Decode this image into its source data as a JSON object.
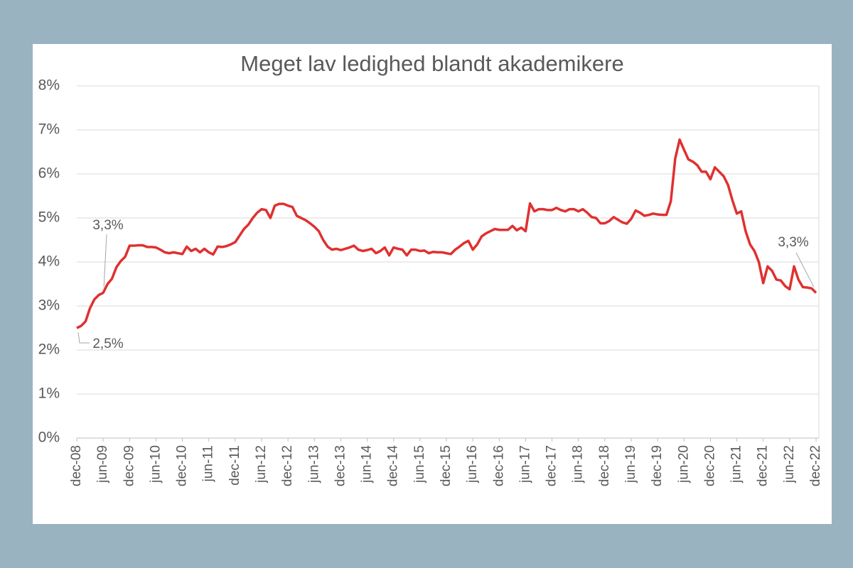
{
  "chart_data": {
    "type": "line",
    "title": "Meget lav ledighed blandt akademikere",
    "categories": [
      "dec-08",
      null,
      null,
      null,
      null,
      null,
      "jun-09",
      null,
      null,
      null,
      null,
      null,
      "dec-09",
      null,
      null,
      null,
      null,
      null,
      "jun-10",
      null,
      null,
      null,
      null,
      null,
      "dec-10",
      null,
      null,
      null,
      null,
      null,
      "jun-11",
      null,
      null,
      null,
      null,
      null,
      "dec-11",
      null,
      null,
      null,
      null,
      null,
      "jun-12",
      null,
      null,
      null,
      null,
      null,
      "dec-12",
      null,
      null,
      null,
      null,
      null,
      "jun-13",
      null,
      null,
      null,
      null,
      null,
      "dec-13",
      null,
      null,
      null,
      null,
      null,
      "jun-14",
      null,
      null,
      null,
      null,
      null,
      "dec-14",
      null,
      null,
      null,
      null,
      null,
      "jun-15",
      null,
      null,
      null,
      null,
      null,
      "dec-15",
      null,
      null,
      null,
      null,
      null,
      "jun-16",
      null,
      null,
      null,
      null,
      null,
      "dec-16",
      null,
      null,
      null,
      null,
      null,
      "jun-17",
      null,
      null,
      null,
      null,
      null,
      "dec-17",
      null,
      null,
      null,
      null,
      null,
      "jun-18",
      null,
      null,
      null,
      null,
      null,
      "dec-18",
      null,
      null,
      null,
      null,
      null,
      "jun-19",
      null,
      null,
      null,
      null,
      null,
      "dec-19",
      null,
      null,
      null,
      null,
      null,
      "jun-20",
      null,
      null,
      null,
      null,
      null,
      "dec-20",
      null,
      null,
      null,
      null,
      null,
      "jun-21",
      null,
      null,
      null,
      null,
      null,
      "dec-21",
      null,
      null,
      null,
      null,
      null,
      "jun-22",
      null,
      null,
      null,
      null,
      null,
      "dec-22"
    ],
    "series": [
      {
        "color": "#e03030",
        "values": [
          2.5,
          2.55,
          2.65,
          2.95,
          3.15,
          3.25,
          3.3,
          3.5,
          3.62,
          3.88,
          4.02,
          4.12,
          4.37,
          4.37,
          4.38,
          4.38,
          4.34,
          4.34,
          4.33,
          4.28,
          4.22,
          4.2,
          4.22,
          4.2,
          4.18,
          4.35,
          4.25,
          4.3,
          4.22,
          4.3,
          4.22,
          4.17,
          4.35,
          4.34,
          4.36,
          4.4,
          4.45,
          4.6,
          4.75,
          4.85,
          5.0,
          5.12,
          5.2,
          5.18,
          5.0,
          5.28,
          5.32,
          5.32,
          5.28,
          5.25,
          5.05,
          5.0,
          4.95,
          4.88,
          4.8,
          4.7,
          4.5,
          4.35,
          4.28,
          4.3,
          4.27,
          4.3,
          4.33,
          4.37,
          4.28,
          4.25,
          4.27,
          4.3,
          4.2,
          4.25,
          4.33,
          4.15,
          4.33,
          4.3,
          4.28,
          4.15,
          4.28,
          4.28,
          4.25,
          4.26,
          4.2,
          4.23,
          4.22,
          4.22,
          4.2,
          4.18,
          4.28,
          4.35,
          4.43,
          4.48,
          4.28,
          4.4,
          4.58,
          4.65,
          4.7,
          4.75,
          4.73,
          4.73,
          4.73,
          4.82,
          4.72,
          4.78,
          4.7,
          5.33,
          5.15,
          5.2,
          5.2,
          5.18,
          5.18,
          5.23,
          5.18,
          5.15,
          5.2,
          5.2,
          5.15,
          5.2,
          5.12,
          5.02,
          5.0,
          4.88,
          4.88,
          4.93,
          5.02,
          4.96,
          4.9,
          4.87,
          4.98,
          5.17,
          5.12,
          5.05,
          5.07,
          5.1,
          5.08,
          5.07,
          5.07,
          5.38,
          6.35,
          6.78,
          6.55,
          6.33,
          6.28,
          6.2,
          6.05,
          6.05,
          5.88,
          6.15,
          6.05,
          5.95,
          5.75,
          5.4,
          5.1,
          5.15,
          4.7,
          4.4,
          4.25,
          4.0,
          3.52,
          3.9,
          3.8,
          3.6,
          3.58,
          3.45,
          3.38,
          3.9,
          3.6,
          3.43,
          3.42,
          3.4,
          3.3
        ],
        "value_labels": [
          "2,5%",
          null,
          null,
          null,
          null,
          null,
          "3,3%",
          null,
          null,
          null,
          null,
          null,
          null,
          null,
          null,
          null,
          null,
          null,
          null,
          null,
          null,
          null,
          null,
          null,
          null,
          null,
          null,
          null,
          null,
          null,
          null,
          null,
          null,
          null,
          null,
          null,
          null,
          null,
          null,
          null,
          null,
          null,
          null,
          null,
          null,
          null,
          null,
          null,
          null,
          null,
          null,
          null,
          null,
          null,
          null,
          null,
          null,
          null,
          null,
          null,
          null,
          null,
          null,
          null,
          null,
          null,
          null,
          null,
          null,
          null,
          null,
          null,
          null,
          null,
          null,
          null,
          null,
          null,
          null,
          null,
          null,
          null,
          null,
          null,
          null,
          null,
          null,
          null,
          null,
          null,
          null,
          null,
          null,
          null,
          null,
          null,
          null,
          null,
          null,
          null,
          null,
          null,
          null,
          null,
          null,
          null,
          null,
          null,
          null,
          null,
          null,
          null,
          null,
          null,
          null,
          null,
          null,
          null,
          null,
          null,
          null,
          null,
          null,
          null,
          null,
          null,
          null,
          null,
          null,
          null,
          null,
          null,
          null,
          null,
          null,
          null,
          null,
          null,
          null,
          null,
          null,
          null,
          null,
          null,
          null,
          null,
          null,
          null,
          null,
          null,
          null,
          null,
          null,
          null,
          null,
          null,
          null,
          null,
          null,
          null,
          null,
          null,
          null,
          null,
          null,
          null,
          null,
          null,
          "3,3%"
        ]
      }
    ],
    "ylim": [
      0,
      8
    ],
    "yticks": [
      {
        "value": 0,
        "label": "0%"
      },
      {
        "value": 1,
        "label": "1%"
      },
      {
        "value": 2,
        "label": "2%"
      },
      {
        "value": 3,
        "label": "3%"
      },
      {
        "value": 4,
        "label": "4%"
      },
      {
        "value": 5,
        "label": "5%"
      },
      {
        "value": 6,
        "label": "6%"
      },
      {
        "value": 7,
        "label": "7%"
      },
      {
        "value": 8,
        "label": "8%"
      }
    ],
    "grid": true
  }
}
